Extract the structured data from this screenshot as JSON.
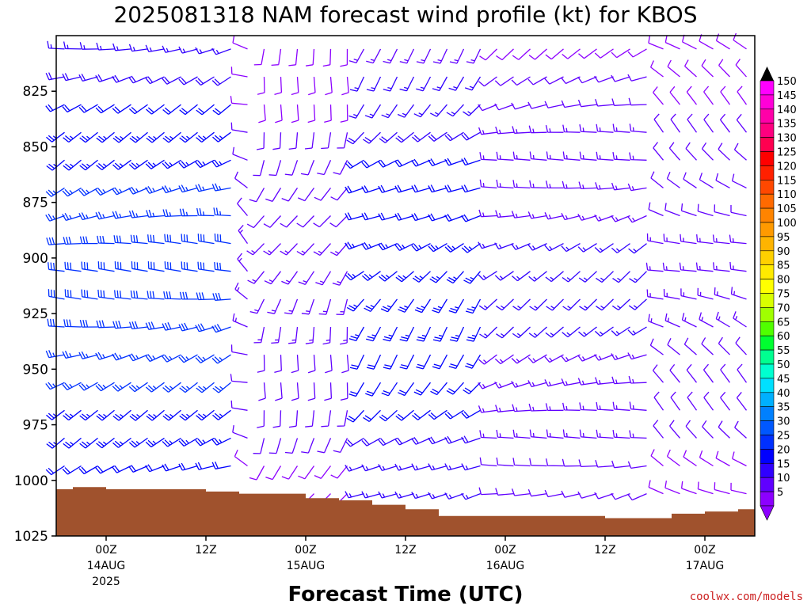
{
  "chart_data": {
    "type": "wind-barb time-height profile",
    "title": "2025081318 NAM forecast wind profile (kt) for KBOS",
    "xlabel": "Forecast Time (UTC)",
    "ylabel": "",
    "units": "kt",
    "credit": "coolwx.com/models",
    "y_axis": {
      "ticks": [
        "825",
        "850",
        "875",
        "900",
        "925",
        "950",
        "975",
        "1000",
        "1025"
      ],
      "values": [
        825,
        850,
        875,
        900,
        925,
        950,
        975,
        1000,
        1025
      ],
      "range": [
        800,
        1025
      ],
      "inverted": true
    },
    "x_axis": {
      "ticks": [
        {
          "label": "00Z",
          "sub1": "14AUG",
          "sub2": "2025",
          "hour": 0
        },
        {
          "label": "12Z",
          "sub1": "",
          "sub2": "",
          "hour": 12
        },
        {
          "label": "00Z",
          "sub1": "15AUG",
          "sub2": "",
          "hour": 24
        },
        {
          "label": "12Z",
          "sub1": "",
          "sub2": "",
          "hour": 36
        },
        {
          "label": "00Z",
          "sub1": "16AUG",
          "sub2": "",
          "hour": 48
        },
        {
          "label": "12Z",
          "sub1": "",
          "sub2": "",
          "hour": 60
        },
        {
          "label": "00Z",
          "sub1": "17AUG",
          "sub2": "",
          "hour": 72
        }
      ],
      "range_hours": [
        -6,
        78
      ]
    },
    "surface_pressure": [
      {
        "h": -6,
        "p": 1004
      },
      {
        "h": -4,
        "p": 1003
      },
      {
        "h": -2,
        "p": 1003
      },
      {
        "h": 0,
        "p": 1004
      },
      {
        "h": 4,
        "p": 1004
      },
      {
        "h": 8,
        "p": 1004
      },
      {
        "h": 12,
        "p": 1005
      },
      {
        "h": 16,
        "p": 1006
      },
      {
        "h": 20,
        "p": 1006
      },
      {
        "h": 24,
        "p": 1008
      },
      {
        "h": 28,
        "p": 1009
      },
      {
        "h": 32,
        "p": 1011
      },
      {
        "h": 36,
        "p": 1013
      },
      {
        "h": 40,
        "p": 1016
      },
      {
        "h": 44,
        "p": 1016
      },
      {
        "h": 48,
        "p": 1016
      },
      {
        "h": 52,
        "p": 1016
      },
      {
        "h": 56,
        "p": 1016
      },
      {
        "h": 60,
        "p": 1017
      },
      {
        "h": 64,
        "p": 1017
      },
      {
        "h": 68,
        "p": 1015
      },
      {
        "h": 72,
        "p": 1014
      },
      {
        "h": 76,
        "p": 1013
      },
      {
        "h": 78,
        "p": 1012
      }
    ],
    "colorbar": {
      "labels": [
        "150",
        "145",
        "140",
        "135",
        "130",
        "125",
        "120",
        "115",
        "110",
        "105",
        "100",
        "95",
        "90",
        "85",
        "80",
        "75",
        "70",
        "65",
        "60",
        "55",
        "50",
        "45",
        "40",
        "35",
        "30",
        "25",
        "20",
        "15",
        "10",
        "5"
      ],
      "colors": [
        "#ff00ff",
        "#ff00d8",
        "#ff00a8",
        "#ff007f",
        "#ff0050",
        "#ff0000",
        "#ff2000",
        "#ff4800",
        "#ff6a00",
        "#ff8400",
        "#ff9a00",
        "#ffb400",
        "#ffd000",
        "#ffea00",
        "#ffff00",
        "#d8ff00",
        "#a0ff00",
        "#50ff00",
        "#00ff30",
        "#00ff90",
        "#00ffd0",
        "#00e0ff",
        "#00b0ff",
        "#0080ff",
        "#0058ff",
        "#0030ff",
        "#0000ff",
        "#3000ff",
        "#6000ff",
        "#8c00ff"
      ]
    },
    "wind_regimes": [
      {
        "h0": -6,
        "h1": 17,
        "speed": 22,
        "dir": 255
      },
      {
        "h0": 18,
        "h1": 30,
        "speed": 10,
        "dir": 200
      },
      {
        "h0": 30,
        "h1": 46,
        "speed": 18,
        "dir": 230
      },
      {
        "h0": 46,
        "h1": 66,
        "speed": 12,
        "dir": 250
      },
      {
        "h0": 66,
        "h1": 78,
        "speed": 10,
        "dir": 300
      }
    ],
    "colors": {
      "ground": "#a0522d",
      "barb_light": "#8c00ff",
      "barb_strong": "#0040ff",
      "frame": "#000000"
    }
  }
}
